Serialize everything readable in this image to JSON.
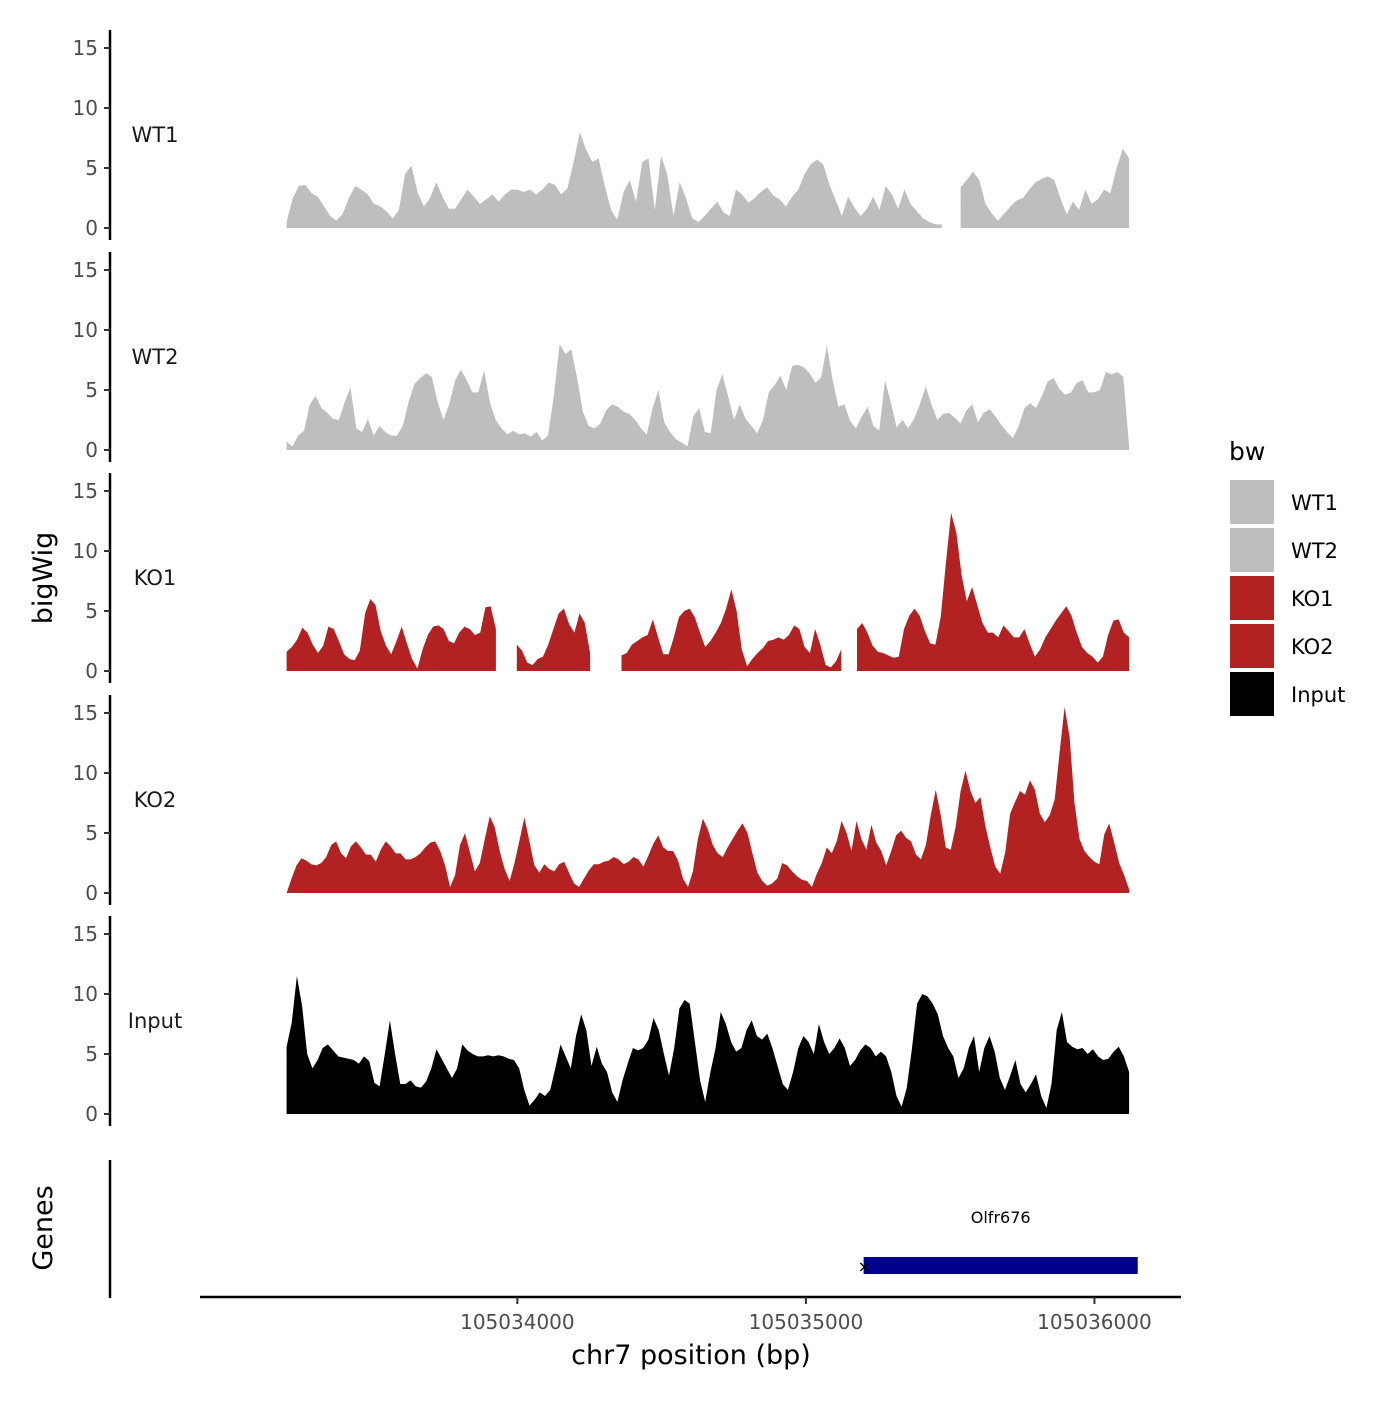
{
  "chart_data": {
    "type": "area",
    "ylabel": "bigWig",
    "xlabel": "chr7 position (bp)",
    "xlim": [
      105032900,
      105036300
    ],
    "ylim": [
      0,
      15
    ],
    "y_ticks": [
      0,
      5,
      10,
      15
    ],
    "x_ticks": [
      105034000,
      105035000,
      105036000
    ],
    "x_tick_labels": [
      "105034000",
      "105035000",
      "105036000"
    ],
    "data_range": [
      105033200,
      105036120
    ],
    "legend": {
      "title": "bw",
      "position": "right",
      "entries": [
        {
          "label": "WT1",
          "color": "#bebebe"
        },
        {
          "label": "WT2",
          "color": "#bebebe"
        },
        {
          "label": "KO1",
          "color": "#b22222"
        },
        {
          "label": "KO2",
          "color": "#b22222"
        },
        {
          "label": "Input",
          "color": "#000000"
        }
      ]
    },
    "tracks": [
      {
        "name": "WT1",
        "label": "WT1",
        "color": "#bebebe",
        "gaps": [
          [
            105035480,
            105035520
          ]
        ],
        "values": [
          0.5,
          2.5,
          3.5,
          3.6,
          2.9,
          2.6,
          1.8,
          1.0,
          0.6,
          1.2,
          2.5,
          3.5,
          3.2,
          2.8,
          2.0,
          1.8,
          1.4,
          0.8,
          1.5,
          4.5,
          5.2,
          3.0,
          1.8,
          2.5,
          3.8,
          2.6,
          1.6,
          1.6,
          2.4,
          3.2,
          2.6,
          2.0,
          2.4,
          2.8,
          2.2,
          2.8,
          3.2,
          3.2,
          3.0,
          3.2,
          2.8,
          3.2,
          3.8,
          3.6,
          2.8,
          3.3,
          5.5,
          8.0,
          6.5,
          5.5,
          5.8,
          3.5,
          1.5,
          0.7,
          3.0,
          4.0,
          2.2,
          5.5,
          5.8,
          1.5,
          6.0,
          4.5,
          1.0,
          3.8,
          2.5,
          0.8,
          0.5,
          1.0,
          1.6,
          2.2,
          1.3,
          1.0,
          3.2,
          2.8,
          2.1,
          2.5,
          3.0,
          3.4,
          2.7,
          2.4,
          1.8,
          2.6,
          3.2,
          4.5,
          5.3,
          5.7,
          5.3,
          3.6,
          2.3,
          1.0,
          2.6,
          1.7,
          1.0,
          1.6,
          2.6,
          1.5,
          3.5,
          2.8,
          1.6,
          3.2,
          2.0,
          1.4,
          0.8,
          0.5,
          0.3,
          0.3,
          0.8,
          2.5,
          3.4,
          4.0,
          4.7,
          4.0,
          2.0,
          1.2,
          0.6,
          1.2,
          1.8,
          2.3,
          2.5,
          3.2,
          3.8,
          4.1,
          4.3,
          4.0,
          2.5,
          1.1,
          2.2,
          1.5,
          3.2,
          2.0,
          2.4,
          3.2,
          2.9,
          5.0,
          6.6,
          5.8
        ]
      },
      {
        "name": "WT2",
        "label": "WT2",
        "color": "#bebebe",
        "gaps": [],
        "values": [
          0.7,
          0.3,
          1.2,
          1.6,
          3.8,
          4.5,
          3.5,
          3.1,
          2.6,
          2.5,
          4.0,
          5.2,
          1.8,
          1.5,
          2.6,
          1.2,
          2.0,
          1.5,
          1.2,
          1.2,
          2.0,
          4.0,
          5.5,
          6.0,
          6.4,
          6.1,
          4.0,
          2.5,
          3.8,
          5.8,
          6.7,
          5.8,
          4.8,
          4.8,
          6.6,
          4.0,
          2.5,
          1.8,
          1.3,
          1.6,
          1.3,
          1.4,
          1.1,
          1.5,
          0.8,
          1.2,
          4.5,
          8.8,
          8.0,
          8.4,
          6.0,
          3.2,
          2.0,
          1.8,
          2.2,
          3.3,
          3.8,
          3.6,
          3.2,
          3.0,
          2.5,
          1.8,
          1.3,
          3.5,
          5.0,
          2.3,
          1.5,
          0.9,
          0.6,
          0.3,
          2.8,
          3.5,
          1.5,
          1.4,
          5.0,
          6.3,
          4.5,
          2.5,
          3.8,
          2.6,
          2.0,
          1.4,
          2.5,
          4.8,
          5.4,
          6.2,
          5.0,
          7.0,
          7.1,
          6.9,
          6.4,
          5.6,
          6.0,
          8.7,
          5.8,
          3.6,
          3.8,
          2.4,
          1.8,
          2.8,
          3.6,
          2.0,
          1.6,
          5.8,
          4.0,
          1.9,
          2.5,
          1.8,
          2.6,
          3.8,
          5.3,
          3.8,
          2.5,
          3.0,
          3.1,
          2.7,
          2.2,
          3.3,
          3.8,
          2.3,
          3.1,
          3.4,
          2.8,
          2.1,
          1.5,
          1.0,
          2.0,
          3.5,
          3.9,
          3.5,
          4.5,
          5.7,
          6.0,
          5.1,
          4.6,
          4.8,
          5.6,
          5.8,
          4.8,
          4.8,
          5.0,
          6.5,
          6.3,
          6.5,
          6.1,
          0.3
        ]
      },
      {
        "name": "KO1",
        "label": "KO1",
        "color": "#b22222",
        "gaps": [
          [
            105033930,
            105033980
          ],
          [
            105034270,
            105034350
          ],
          [
            105035140,
            105035160
          ]
        ],
        "values": [
          1.6,
          2.0,
          2.6,
          3.6,
          3.2,
          2.2,
          1.5,
          2.1,
          3.7,
          3.5,
          2.5,
          1.4,
          1.0,
          0.9,
          1.7,
          4.8,
          6.0,
          5.5,
          3.3,
          2.1,
          1.4,
          2.5,
          3.7,
          2.3,
          1.0,
          0.2,
          1.8,
          3.0,
          3.7,
          3.8,
          3.5,
          2.5,
          2.3,
          3.2,
          3.7,
          3.5,
          3.0,
          3.2,
          5.3,
          5.4,
          3.5,
          2.8,
          2.6,
          2.4,
          2.2,
          1.7,
          0.7,
          0.5,
          1.0,
          1.2,
          2.2,
          3.5,
          4.8,
          5.2,
          3.9,
          3.2,
          4.8,
          4.0,
          1.5,
          0.5,
          0.3,
          1.5,
          2.5,
          2.0,
          1.3,
          1.5,
          2.2,
          2.5,
          2.8,
          3.0,
          4.3,
          2.8,
          1.4,
          1.4,
          2.8,
          4.5,
          5.0,
          5.2,
          4.5,
          3.2,
          2.0,
          2.5,
          3.2,
          4.0,
          5.2,
          6.8,
          5.0,
          1.8,
          0.4,
          1.0,
          1.5,
          1.9,
          2.5,
          2.6,
          2.8,
          2.6,
          3.0,
          3.8,
          3.5,
          2.0,
          1.5,
          3.5,
          2.2,
          0.5,
          0.3,
          0.8,
          1.8,
          2.0,
          2.0,
          3.5,
          4.0,
          3.2,
          2.1,
          1.6,
          1.5,
          1.3,
          1.1,
          1.2,
          3.5,
          4.6,
          5.2,
          4.6,
          3.3,
          2.3,
          2.2,
          4.5,
          9.0,
          13.2,
          11.5,
          8.0,
          5.8,
          7.0,
          5.5,
          4.0,
          3.2,
          3.2,
          2.8,
          3.8,
          3.3,
          2.8,
          2.8,
          3.5,
          2.3,
          1.2,
          1.8,
          2.8,
          3.5,
          4.2,
          4.8,
          5.4,
          4.6,
          3.2,
          2.0,
          1.5,
          1.2,
          0.7,
          1.2,
          3.0,
          4.2,
          4.3,
          3.2,
          2.8
        ]
      },
      {
        "name": "KO2",
        "label": "KO2",
        "color": "#b22222",
        "gaps": [],
        "values": [
          0.0,
          1.2,
          2.3,
          2.9,
          2.7,
          2.4,
          2.3,
          2.5,
          3.0,
          4.0,
          4.3,
          3.3,
          2.9,
          3.9,
          4.3,
          3.8,
          3.2,
          3.2,
          2.6,
          3.6,
          4.3,
          3.9,
          3.3,
          3.3,
          2.8,
          2.8,
          3.0,
          3.3,
          3.8,
          4.2,
          4.3,
          3.5,
          2.3,
          0.5,
          1.5,
          4.0,
          5.0,
          3.4,
          1.8,
          2.5,
          4.5,
          6.4,
          5.5,
          3.5,
          2.0,
          1.0,
          2.5,
          4.4,
          6.3,
          4.3,
          2.3,
          1.7,
          2.4,
          2.0,
          1.8,
          2.4,
          2.6,
          1.7,
          0.8,
          0.5,
          1.2,
          1.9,
          2.4,
          2.4,
          2.6,
          2.7,
          3.0,
          2.8,
          2.4,
          2.6,
          3.0,
          2.8,
          2.2,
          3.1,
          4.1,
          4.8,
          3.8,
          3.5,
          3.5,
          2.7,
          1.2,
          0.5,
          1.8,
          4.5,
          6.2,
          5.3,
          4.0,
          3.3,
          3.0,
          3.8,
          4.5,
          5.2,
          5.8,
          5.0,
          3.3,
          1.7,
          1.0,
          0.6,
          0.8,
          1.2,
          2.5,
          2.3,
          1.8,
          1.4,
          1.1,
          1.0,
          0.5,
          1.6,
          2.5,
          3.8,
          3.3,
          4.3,
          6.0,
          5.0,
          3.5,
          6.0,
          4.5,
          3.6,
          5.7,
          4.2,
          3.5,
          2.3,
          3.5,
          4.8,
          5.2,
          4.6,
          4.3,
          3.2,
          2.8,
          4.0,
          6.5,
          8.6,
          6.5,
          3.8,
          3.6,
          5.5,
          8.5,
          10.2,
          8.5,
          7.5,
          8.0,
          5.6,
          3.8,
          2.2,
          1.6,
          3.4,
          6.6,
          7.6,
          8.5,
          8.2,
          9.4,
          8.6,
          6.6,
          5.9,
          6.5,
          7.8,
          11.8,
          15.5,
          13.0,
          7.5,
          4.5,
          3.5,
          3.0,
          2.6,
          2.4,
          4.9,
          5.8,
          4.2,
          2.5,
          1.5,
          0.3
        ]
      },
      {
        "name": "Input",
        "label": "Input",
        "color": "#000000",
        "gaps": [],
        "values": [
          5.6,
          7.6,
          11.5,
          9.0,
          5.0,
          3.8,
          4.5,
          5.5,
          5.8,
          5.3,
          4.8,
          4.7,
          4.6,
          4.5,
          4.2,
          4.8,
          4.4,
          2.6,
          2.3,
          5.0,
          7.8,
          5.0,
          2.5,
          2.5,
          2.8,
          2.3,
          2.2,
          2.7,
          3.8,
          5.4,
          4.6,
          3.8,
          3.0,
          3.8,
          5.8,
          5.3,
          5.0,
          4.8,
          4.8,
          4.9,
          4.8,
          4.9,
          4.8,
          4.6,
          4.5,
          3.8,
          2.0,
          0.7,
          1.2,
          1.8,
          1.5,
          2.0,
          3.8,
          5.8,
          4.8,
          3.8,
          6.5,
          8.3,
          7.0,
          4.0,
          5.6,
          4.2,
          3.5,
          1.8,
          1.0,
          2.8,
          4.2,
          5.5,
          5.3,
          5.5,
          6.2,
          8.0,
          7.0,
          5.0,
          3.2,
          5.5,
          8.8,
          9.5,
          9.2,
          6.0,
          2.8,
          1.0,
          3.5,
          5.5,
          8.5,
          7.5,
          6.0,
          5.2,
          5.5,
          7.0,
          7.8,
          6.5,
          6.2,
          6.7,
          5.5,
          4.0,
          2.5,
          2.0,
          3.5,
          5.5,
          6.5,
          6.0,
          5.0,
          7.5,
          6.0,
          5.0,
          5.5,
          6.3,
          5.5,
          4.0,
          4.5,
          5.3,
          5.8,
          5.5,
          4.8,
          5.2,
          4.8,
          3.5,
          1.5,
          0.6,
          2.2,
          5.5,
          9.2,
          10.0,
          9.8,
          9.2,
          8.3,
          6.5,
          5.5,
          4.8,
          3.0,
          3.8,
          5.5,
          6.5,
          3.5,
          5.5,
          6.5,
          5.2,
          3.0,
          2.0,
          3.2,
          4.5,
          2.5,
          1.8,
          2.5,
          3.3,
          1.5,
          0.5,
          2.5,
          7.0,
          8.5,
          6.0,
          5.6,
          5.4,
          5.5,
          5.0,
          5.4,
          4.8,
          4.5,
          4.6,
          5.2,
          5.6,
          4.8,
          3.5
        ]
      }
    ],
    "genes_track": {
      "label": "Genes",
      "genes": [
        {
          "name": "Olfr676",
          "start": 105035200,
          "end": 105036150,
          "strand": "-",
          "color": "#00008b"
        }
      ]
    }
  }
}
